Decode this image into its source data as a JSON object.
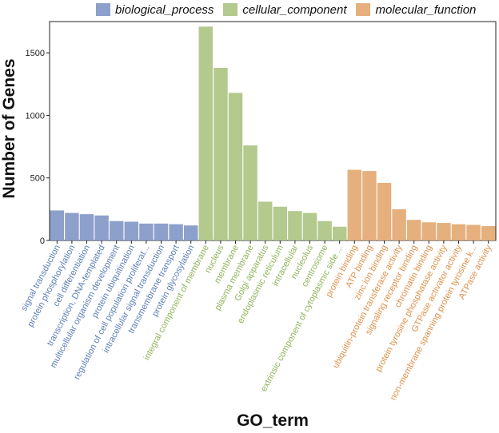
{
  "chart_data": {
    "type": "bar",
    "xlabel": "GO_term",
    "ylabel": "Number of Genes",
    "ylim": [
      0,
      1750
    ],
    "yticks": [
      0,
      500,
      1000,
      1500
    ],
    "grid": false,
    "legend_position": "top",
    "series": [
      {
        "name": "biological_process",
        "color": "#8da0cb",
        "label_color": "#5b7fb6",
        "categories": [
          "signal transduction",
          "protein phosphorylation",
          "cell differentiation",
          "transcription, DNA-templated",
          "multicellular organism development",
          "protein ubiquitination",
          "regulation of cell population proliferat...",
          "intracellular signal transduction",
          "transmembrane transport",
          "protein glycosylation"
        ],
        "values": [
          240,
          220,
          210,
          200,
          155,
          150,
          135,
          135,
          130,
          120
        ]
      },
      {
        "name": "cellular_component",
        "color": "#b3c98e",
        "label_color": "#8fb55a",
        "categories": [
          "integral component of membrane",
          "nucleus",
          "membrane",
          "plasma membrane",
          "Golgi apparatus",
          "endoplasmic reticulum",
          "intracellular",
          "nucleolus",
          "centrosome",
          "extrinsic component of cytoplasmic side ..."
        ],
        "values": [
          1710,
          1380,
          1180,
          760,
          310,
          270,
          235,
          220,
          155,
          110
        ]
      },
      {
        "name": "molecular_function",
        "color": "#e5b07d",
        "label_color": "#e0904a",
        "categories": [
          "protein binding",
          "ATP binding",
          "zinc ion binding",
          "ubiquitin-protein transferase activity",
          "signaling receptor binding",
          "chromatin binding",
          "protein tyrosine phosphatase activity",
          "GTPase activator activity",
          "non-membrane spanning protein tyrosine k...",
          "ATPase activity"
        ],
        "values": [
          565,
          555,
          460,
          250,
          165,
          145,
          140,
          130,
          125,
          115
        ]
      }
    ]
  }
}
